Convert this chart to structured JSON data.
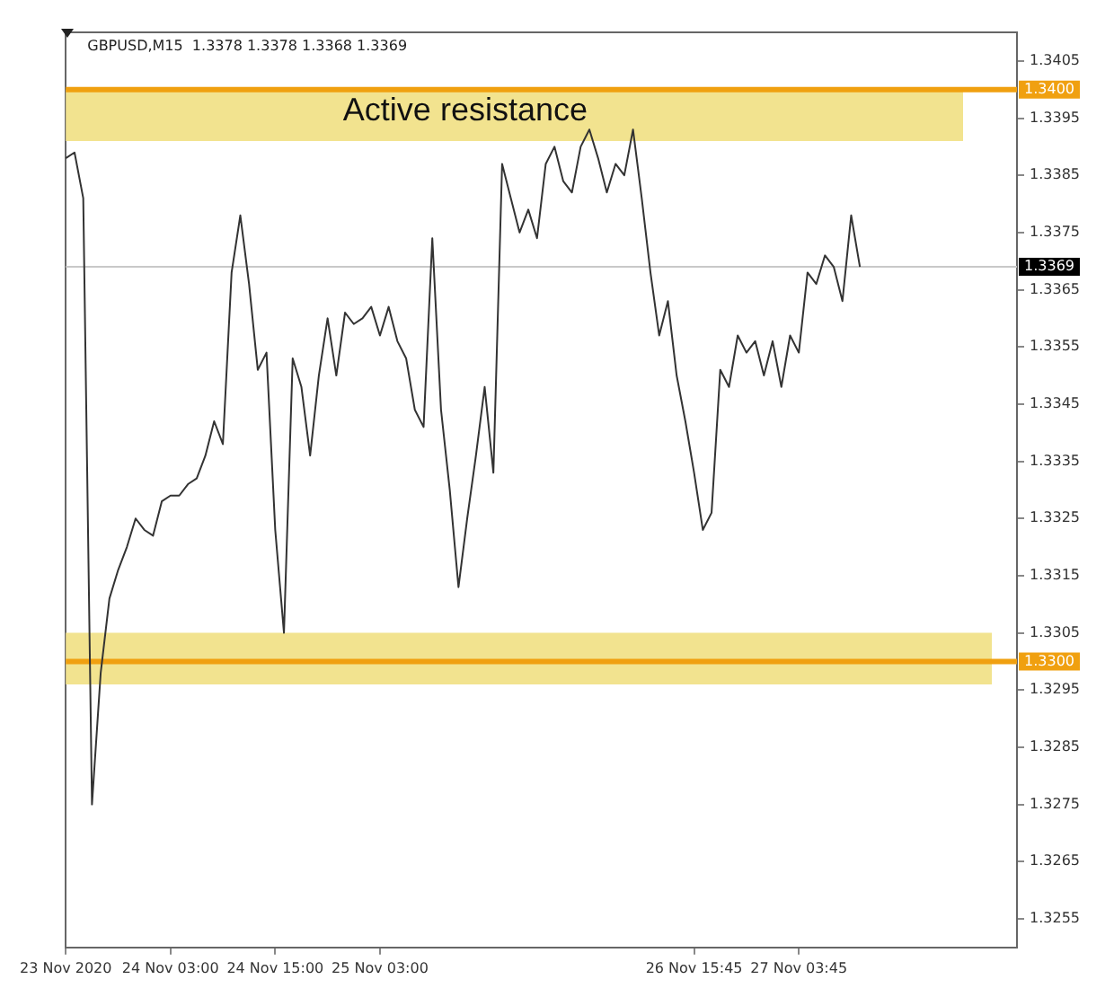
{
  "chart_data": {
    "type": "line",
    "title": "GBPUSD,M15  1.3378 1.3378 1.3368 1.3369",
    "categories": [
      "23 Nov 2020",
      null,
      null,
      null,
      null,
      null,
      null,
      null,
      null,
      null,
      null,
      null,
      "24 Nov 03:00",
      null,
      null,
      null,
      null,
      null,
      null,
      null,
      null,
      null,
      null,
      null,
      "24 Nov 15:00",
      null,
      null,
      null,
      null,
      null,
      null,
      null,
      null,
      null,
      null,
      null,
      "25 Nov 03:00",
      null,
      null,
      null,
      null,
      null,
      null,
      null,
      null,
      null,
      null,
      null,
      null,
      null,
      null,
      null,
      null,
      null,
      null,
      null,
      null,
      null,
      null,
      null,
      null,
      null,
      null,
      null,
      null,
      null,
      null,
      null,
      null,
      null,
      null,
      null,
      "26 Nov 15:45",
      null,
      null,
      null,
      null,
      null,
      null,
      null,
      null,
      null,
      null,
      null,
      "27 Nov 03:45",
      null,
      null,
      null,
      null,
      null,
      null,
      null,
      null,
      null,
      null,
      null,
      null,
      null,
      null,
      null,
      null,
      null,
      null,
      null,
      null,
      null,
      null,
      null,
      null,
      null
    ],
    "ylim": [
      1.325,
      1.341
    ],
    "yticks": [
      1.3255,
      1.3265,
      1.3275,
      1.3285,
      1.3295,
      1.3305,
      1.3315,
      1.3325,
      1.3335,
      1.3345,
      1.3355,
      1.3365,
      1.3375,
      1.3385,
      1.3395,
      1.3405
    ],
    "series": [
      {
        "color": "#333333",
        "values": [
          1.3388,
          1.3389,
          1.3381,
          1.3275,
          1.3298,
          1.3311,
          1.3316,
          1.332,
          1.3325,
          1.3323,
          1.3322,
          1.3328,
          1.3329,
          1.3329,
          1.3331,
          1.3332,
          1.3336,
          1.3342,
          1.3338,
          1.3368,
          1.3378,
          1.3366,
          1.3351,
          1.3354,
          1.3323,
          1.3305,
          1.3353,
          1.3348,
          1.3336,
          1.335,
          1.336,
          1.335,
          1.3361,
          1.3359,
          1.336,
          1.3362,
          1.3357,
          1.3362,
          1.3356,
          1.3353,
          1.3344,
          1.3341,
          1.3374,
          1.3344,
          1.333,
          1.3313,
          1.3325,
          1.3336,
          1.3348,
          1.3333,
          1.3387,
          1.3381,
          1.3375,
          1.3379,
          1.3374,
          1.3387,
          1.339,
          1.3384,
          1.3382,
          1.339,
          1.3393,
          1.3388,
          1.3382,
          1.3387,
          1.3385,
          1.3393,
          1.3381,
          1.3368,
          1.3357,
          1.3363,
          1.335,
          1.3342,
          1.3333,
          1.3323,
          1.3326,
          1.3351,
          1.3348,
          1.3357,
          1.3354,
          1.3356,
          1.335,
          1.3356,
          1.3348,
          1.3357,
          1.3354,
          1.3368,
          1.3366,
          1.3371,
          1.3369,
          1.3363,
          1.3378,
          1.3369,
          null,
          null,
          null,
          null,
          null,
          null,
          null,
          null,
          null,
          null,
          null,
          null,
          null,
          null,
          null,
          null,
          null,
          null
        ]
      }
    ],
    "bands": [
      {
        "axis": "y",
        "from": 1.3391,
        "to": 1.34,
        "label": "Active resistance",
        "color": "#f2e38f"
      },
      {
        "axis": "y",
        "from": 1.3296,
        "to": 1.3305,
        "color": "#f2e38f"
      }
    ],
    "ref_lines": [
      {
        "axis": "y",
        "value": 1.34,
        "label": "1.3400",
        "color": "#f0a010"
      },
      {
        "axis": "y",
        "value": 1.33,
        "label": "1.3300",
        "color": "#f0a010"
      },
      {
        "axis": "y",
        "value": 1.3369,
        "label": "1.3369",
        "color": "#c8c8c8"
      }
    ],
    "grid": false,
    "legend": false,
    "marker": "none",
    "line_style": "solid"
  }
}
